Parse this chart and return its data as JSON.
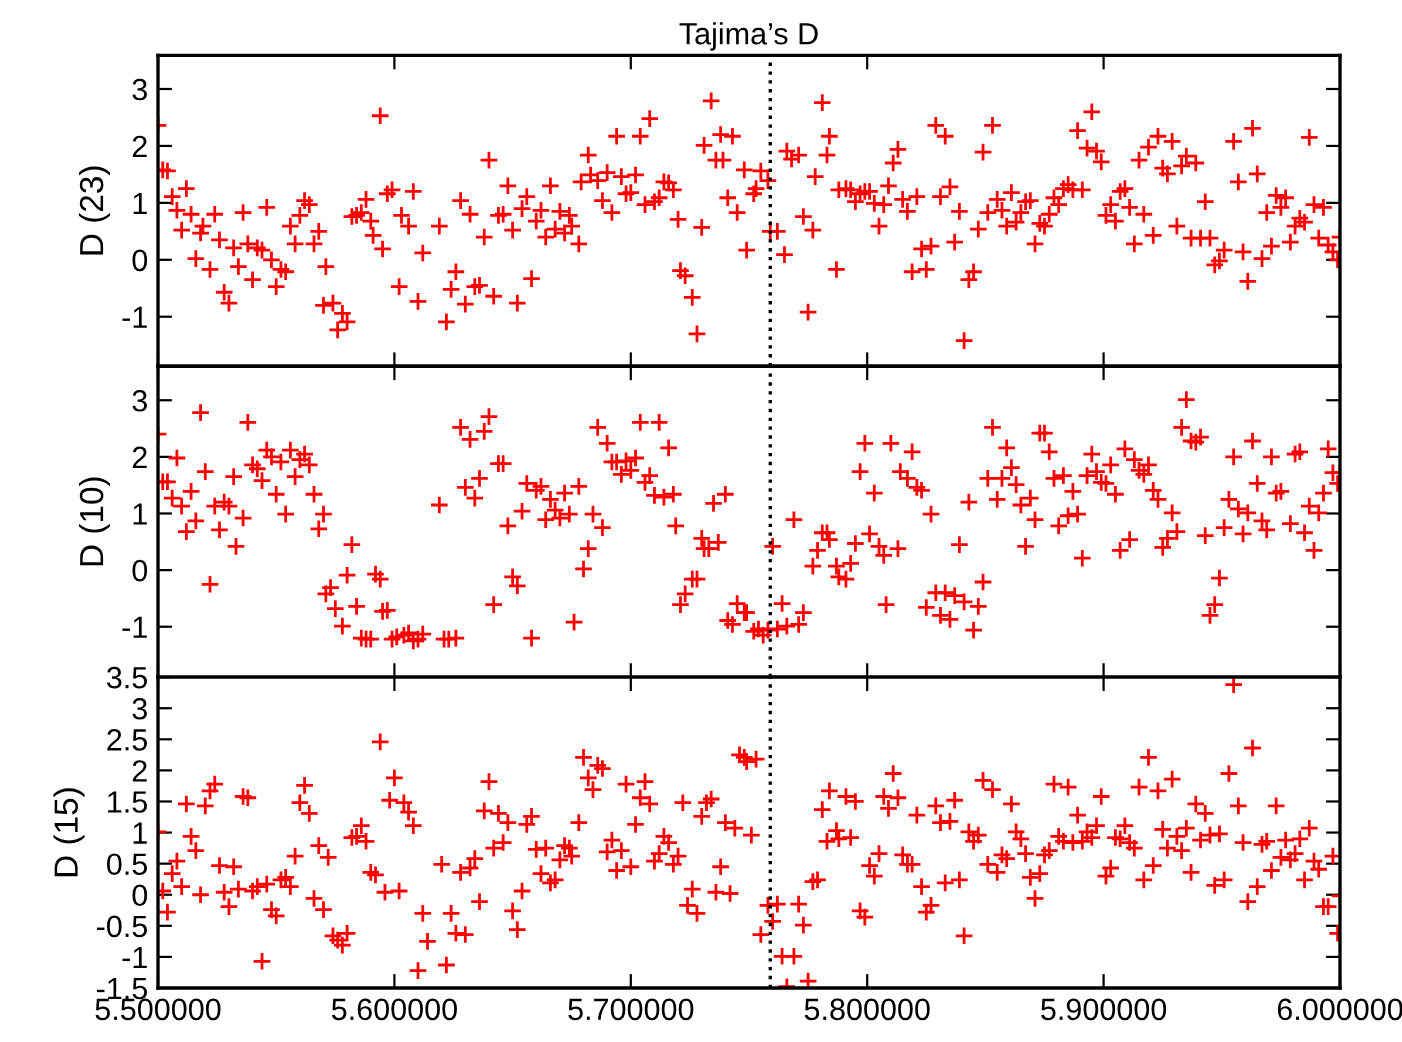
{
  "chart_data": [
    {
      "type": "scatter",
      "title": "Tajima’s D",
      "ylabel": "D (23)",
      "color": "#ff0000",
      "marker": "cross",
      "tick_labels": "y",
      "xlim": [
        5.5,
        6.0
      ],
      "xticks": [
        {
          "value": 5.5,
          "label": null
        },
        {
          "value": 5.6,
          "label": null
        },
        {
          "value": 5.7,
          "label": null
        },
        {
          "value": 5.8,
          "label": null
        },
        {
          "value": 5.9,
          "label": null
        },
        {
          "value": 6.0,
          "label": null
        }
      ],
      "ylim": [
        -1.87,
        3.59
      ],
      "yticks": [
        -1,
        0,
        1,
        2,
        3
      ],
      "ref_lines": [
        {
          "axis": "x",
          "value": 5.759,
          "color": "#000000",
          "line_style": "dotted"
        }
      ],
      "x": [
        5.5,
        5.502,
        5.504,
        5.506,
        5.508,
        5.51,
        5.512,
        5.514,
        5.516,
        5.518,
        5.519,
        5.522,
        5.524,
        5.526,
        5.528,
        5.53,
        5.532,
        5.534,
        5.536,
        5.538,
        5.54,
        5.542,
        5.544,
        5.546,
        5.548,
        5.55,
        5.552,
        5.554,
        5.556,
        5.558,
        5.56,
        5.562,
        5.564,
        5.566,
        5.568,
        5.57,
        5.571,
        5.574,
        5.576,
        5.578,
        5.58,
        5.582,
        5.584,
        5.586,
        5.588,
        5.59,
        5.591,
        5.594,
        5.595,
        5.597,
        5.599,
        5.602,
        5.603,
        5.606,
        5.608,
        5.61,
        5.612,
        5.619,
        5.622,
        5.624,
        5.626,
        5.628,
        5.63,
        5.632,
        5.634,
        5.636,
        5.638,
        5.64,
        5.642,
        5.644,
        5.646,
        5.648,
        5.65,
        5.652,
        5.654,
        5.656,
        5.658,
        5.66,
        5.662,
        5.664,
        5.666,
        5.668,
        5.67,
        5.672,
        5.674,
        5.675,
        5.678,
        5.679,
        5.682,
        5.683,
        5.686,
        5.688,
        5.69,
        5.692,
        5.694,
        5.696,
        5.698,
        5.7,
        5.702,
        5.704,
        5.706,
        5.708,
        5.71,
        5.712,
        5.714,
        5.716,
        5.718,
        5.72,
        5.721,
        5.723,
        5.726,
        5.728,
        5.73,
        5.731,
        5.734,
        5.736,
        5.738,
        5.739,
        5.741,
        5.743,
        5.745,
        5.748,
        5.749,
        5.752,
        5.753,
        5.755,
        5.758,
        5.759,
        5.762,
        5.765,
        5.766,
        5.768,
        5.771,
        5.773,
        5.775,
        5.777,
        5.778,
        5.781,
        5.783,
        5.784,
        5.787,
        5.788,
        5.791,
        5.793,
        5.795,
        5.797,
        5.799,
        5.801,
        5.803,
        5.805,
        5.807,
        5.809,
        5.811,
        5.813,
        5.815,
        5.817,
        5.819,
        5.821,
        5.823,
        5.825,
        5.827,
        5.829,
        5.831,
        5.833,
        5.835,
        5.837,
        5.839,
        5.841,
        5.843,
        5.845,
        5.847,
        5.849,
        5.851,
        5.853,
        5.855,
        5.857,
        5.859,
        5.861,
        5.863,
        5.865,
        5.867,
        5.869,
        5.871,
        5.873,
        5.875,
        5.877,
        5.879,
        5.881,
        5.883,
        5.885,
        5.887,
        5.889,
        5.891,
        5.893,
        5.895,
        5.897,
        5.899,
        5.901,
        5.903,
        5.905,
        5.907,
        5.909,
        5.911,
        5.913,
        5.915,
        5.917,
        5.919,
        5.921,
        5.923,
        5.925,
        5.927,
        5.929,
        5.931,
        5.933,
        5.935,
        5.937,
        5.939,
        5.941,
        5.943,
        5.945,
        5.947,
        5.949,
        5.951,
        5.955,
        5.957,
        5.959,
        5.961,
        5.963,
        5.965,
        5.967,
        5.969,
        5.971,
        5.973,
        5.975,
        5.977,
        5.979,
        5.981,
        5.983,
        5.985,
        5.987,
        5.989,
        5.991,
        5.993,
        5.995,
        5.997,
        5.999,
        6.0
      ],
      "values": [
        2.36,
        1.58,
        1.56,
        1.11,
        0.87,
        0.52,
        1.25,
        0.8,
        0.02,
        0.47,
        0.59,
        -0.17,
        0.8,
        0.35,
        -0.57,
        -0.76,
        0.21,
        -0.12,
        0.83,
        0.28,
        -0.35,
        0.21,
        0.17,
        0.92,
        0.0,
        -0.47,
        -0.17,
        -0.21,
        0.59,
        0.28,
        0.78,
        1.04,
        0.97,
        0.28,
        0.5,
        -0.8,
        -0.12,
        -0.76,
        -1.23,
        -0.94,
        -1.09,
        0.76,
        0.78,
        0.83,
        1.06,
        0.68,
        0.43,
        2.53,
        0.19,
        1.16,
        1.23,
        -0.47,
        0.78,
        0.59,
        1.2,
        -0.73,
        0.12,
        0.59,
        -1.09,
        -0.52,
        -0.21,
        1.04,
        -0.78,
        0.8,
        -0.47,
        -0.45,
        0.4,
        1.75,
        -0.64,
        0.78,
        0.8,
        1.3,
        0.52,
        -0.76,
        0.9,
        1.11,
        -0.33,
        0.68,
        0.87,
        0.4,
        1.3,
        0.54,
        0.85,
        0.47,
        0.78,
        0.59,
        0.28,
        1.37,
        1.84,
        1.49,
        1.39,
        1.04,
        1.53,
        0.83,
        2.17,
        1.46,
        1.16,
        1.18,
        1.49,
        2.17,
        0.97,
        2.48,
        1.02,
        1.09,
        1.37,
        1.35,
        1.23,
        0.71,
        -0.19,
        -0.28,
        -0.66,
        -1.3,
        0.57,
        2.01,
        2.79,
        1.75,
        2.2,
        1.75,
        1.09,
        2.17,
        0.83,
        1.58,
        0.17,
        1.16,
        1.25,
        1.56,
        1.39,
        0.5,
        0.5,
        0.09,
        1.91,
        1.77,
        1.84,
        0.76,
        -0.92,
        0.52,
        1.46,
        2.76,
        1.84,
        2.17,
        -0.17,
        1.23,
        1.25,
        1.23,
        1.02,
        1.16,
        1.2,
        1.2,
        0.99,
        0.59,
        0.97,
        1.3,
        1.7,
        1.94,
        1.06,
        0.85,
        -0.21,
        1.11,
        0.19,
        -0.17,
        0.24,
        2.36,
        1.11,
        2.17,
        1.28,
        0.31,
        0.85,
        -1.42,
        -0.35,
        -0.21,
        0.54,
        1.89,
        0.83,
        2.36,
        1.06,
        0.87,
        0.59,
        1.18,
        0.66,
        0.83,
        1.02,
        1.04,
        0.28,
        0.64,
        0.59,
        0.8,
        1.09,
        0.97,
        1.25,
        1.32,
        1.23,
        2.27,
        1.23,
        1.96,
        2.6,
        1.91,
        1.72,
        0.78,
        0.97,
        0.68,
        1.2,
        1.25,
        0.92,
        0.28,
        1.75,
        0.8,
        1.98,
        0.43,
        2.17,
        1.61,
        1.51,
        2.08,
        0.59,
        1.65,
        1.82,
        0.38,
        1.7,
        0.38,
        1.02,
        0.38,
        -0.09,
        -0.02,
        0.17,
        2.08,
        1.37,
        0.14,
        -0.38,
        2.31,
        1.51,
        0.02,
        0.83,
        0.24,
        1.13,
        0.92,
        1.09,
        0.31,
        0.59,
        0.73,
        0.66,
        2.15,
        0.97,
        0.38,
        0.92,
        0.26,
        0.14,
        0.0,
        0.4
      ]
    },
    {
      "type": "scatter",
      "ylabel": "D (10)",
      "color": "#ff0000",
      "marker": "cross",
      "tick_labels": "y",
      "xlim": [
        5.5,
        6.0
      ],
      "xticks": [
        {
          "value": 5.5,
          "label": null
        },
        {
          "value": 5.6,
          "label": null
        },
        {
          "value": 5.7,
          "label": null
        },
        {
          "value": 5.8,
          "label": null
        },
        {
          "value": 5.9,
          "label": null
        },
        {
          "value": 6.0,
          "label": null
        }
      ],
      "ylim": [
        -1.89,
        3.6
      ],
      "yticks": [
        -1,
        0,
        1,
        2,
        3
      ],
      "ref_lines": [
        {
          "axis": "x",
          "value": 5.759,
          "color": "#000000",
          "line_style": "dotted"
        }
      ],
      "x": [
        5.5,
        5.502,
        5.504,
        5.506,
        5.508,
        5.51,
        5.512,
        5.514,
        5.516,
        5.518,
        5.52,
        5.522,
        5.524,
        5.526,
        5.528,
        5.53,
        5.532,
        5.533,
        5.536,
        5.538,
        5.54,
        5.542,
        5.544,
        5.546,
        5.548,
        5.55,
        5.552,
        5.554,
        5.556,
        5.558,
        5.56,
        5.562,
        5.564,
        5.566,
        5.568,
        5.57,
        5.571,
        5.573,
        5.575,
        5.578,
        5.58,
        5.582,
        5.584,
        5.586,
        5.588,
        5.59,
        5.592,
        5.594,
        5.595,
        5.597,
        5.599,
        5.601,
        5.604,
        5.606,
        5.608,
        5.61,
        5.612,
        5.619,
        5.621,
        5.623,
        5.626,
        5.628,
        5.63,
        5.632,
        5.634,
        5.636,
        5.638,
        5.64,
        5.642,
        5.644,
        5.646,
        5.648,
        5.65,
        5.652,
        5.654,
        5.656,
        5.658,
        5.66,
        5.662,
        5.664,
        5.666,
        5.668,
        5.67,
        5.672,
        5.674,
        5.676,
        5.678,
        5.68,
        5.682,
        5.684,
        5.686,
        5.688,
        5.69,
        5.692,
        5.694,
        5.696,
        5.698,
        5.7,
        5.702,
        5.704,
        5.706,
        5.708,
        5.71,
        5.712,
        5.714,
        5.716,
        5.718,
        5.719,
        5.721,
        5.723,
        5.726,
        5.728,
        5.73,
        5.731,
        5.733,
        5.735,
        5.737,
        5.74,
        5.741,
        5.743,
        5.745,
        5.748,
        5.749,
        5.752,
        5.754,
        5.756,
        5.758,
        5.76,
        5.762,
        5.764,
        5.766,
        5.769,
        5.771,
        5.773,
        5.777,
        5.779,
        5.781,
        5.783,
        5.784,
        5.787,
        5.788,
        5.791,
        5.793,
        5.795,
        5.797,
        5.799,
        5.801,
        5.803,
        5.805,
        5.807,
        5.808,
        5.81,
        5.813,
        5.814,
        5.817,
        5.819,
        5.821,
        5.823,
        5.825,
        5.827,
        5.829,
        5.831,
        5.833,
        5.835,
        5.837,
        5.839,
        5.841,
        5.843,
        5.845,
        5.847,
        5.849,
        5.851,
        5.853,
        5.855,
        5.857,
        5.859,
        5.861,
        5.863,
        5.865,
        5.867,
        5.869,
        5.871,
        5.873,
        5.875,
        5.877,
        5.879,
        5.881,
        5.883,
        5.885,
        5.887,
        5.889,
        5.891,
        5.893,
        5.895,
        5.897,
        5.899,
        5.901,
        5.903,
        5.905,
        5.907,
        5.909,
        5.911,
        5.913,
        5.915,
        5.917,
        5.919,
        5.921,
        5.923,
        5.925,
        5.927,
        5.929,
        5.931,
        5.933,
        5.935,
        5.937,
        5.939,
        5.941,
        5.943,
        5.945,
        5.947,
        5.949,
        5.951,
        5.953,
        5.955,
        5.957,
        5.959,
        5.961,
        5.963,
        5.965,
        5.967,
        5.969,
        5.971,
        5.973,
        5.975,
        5.979,
        5.981,
        5.983,
        5.985,
        5.987,
        5.989,
        5.991,
        5.993,
        5.995,
        5.997,
        5.999,
        6.0
      ],
      "values": [
        2.4,
        1.56,
        1.56,
        1.27,
        1.98,
        1.13,
        0.68,
        1.39,
        0.87,
        2.78,
        1.74,
        -0.25,
        1.13,
        0.71,
        1.2,
        1.13,
        1.65,
        0.42,
        0.92,
        2.61,
        1.86,
        1.79,
        1.58,
        2.12,
        2.0,
        1.34,
        1.91,
        0.99,
        2.12,
        1.65,
        1.95,
        2.05,
        1.86,
        1.34,
        0.73,
        0.99,
        -0.42,
        -0.31,
        -0.68,
        -0.99,
        -0.09,
        0.45,
        -0.64,
        -1.2,
        -1.22,
        -1.22,
        -0.07,
        -0.16,
        -0.73,
        -0.71,
        -1.22,
        -1.18,
        -1.15,
        -1.11,
        -1.25,
        -1.22,
        -1.13,
        1.15,
        -1.22,
        -1.22,
        -1.2,
        2.52,
        1.46,
        2.31,
        1.27,
        1.62,
        2.45,
        2.71,
        -0.61,
        1.88,
        1.88,
        0.78,
        -0.12,
        -0.28,
        1.04,
        1.53,
        -1.2,
        1.41,
        1.48,
        0.89,
        1.25,
        1.06,
        0.92,
        1.36,
        0.99,
        -0.92,
        1.48,
        0.02,
        0.38,
        0.99,
        2.52,
        0.75,
        2.24,
        1.91,
        1.91,
        1.69,
        1.93,
        1.76,
        1.98,
        2.61,
        1.55,
        1.67,
        1.32,
        2.61,
        1.29,
        2.16,
        1.34,
        0.78,
        -0.61,
        -0.42,
        -0.16,
        -0.16,
        0.56,
        0.38,
        0.38,
        1.18,
        0.49,
        1.34,
        -0.89,
        -0.96,
        -0.59,
        -0.75,
        -0.75,
        -1.08,
        -1.04,
        -1.15,
        -1.06,
        0.42,
        -1.04,
        -0.59,
        -0.99,
        0.89,
        -0.96,
        -0.75,
        0.07,
        0.35,
        0.66,
        0.66,
        0.54,
        0.07,
        -0.12,
        -0.16,
        0.12,
        0.47,
        1.74,
        2.24,
        0.64,
        1.36,
        0.42,
        0.26,
        -0.61,
        2.24,
        0.38,
        1.74,
        1.62,
        2.09,
        1.46,
        1.41,
        -0.66,
        0.99,
        -0.4,
        -0.8,
        -0.4,
        -0.87,
        -0.45,
        0.45,
        -0.56,
        1.2,
        -1.06,
        -0.64,
        -0.21,
        1.62,
        2.52,
        1.25,
        1.62,
        2.16,
        1.81,
        1.51,
        1.15,
        0.42,
        1.27,
        0.89,
        2.42,
        2.42,
        2.09,
        1.62,
        0.78,
        1.67,
        0.96,
        1.39,
        0.99,
        0.21,
        1.67,
        2.05,
        1.74,
        1.55,
        1.53,
        1.86,
        1.34,
        0.35,
        2.14,
        0.54,
        1.95,
        1.76,
        1.69,
        1.86,
        1.41,
        1.25,
        0.4,
        0.56,
        1.01,
        0.68,
        2.52,
        3.01,
        2.28,
        2.26,
        2.35,
        0.61,
        -0.8,
        -0.61,
        -0.14,
        0.75,
        1.25,
        2.0,
        1.08,
        0.64,
        1.01,
        2.28,
        1.53,
        0.87,
        0.71,
        2.0,
        1.36,
        1.39,
        0.82,
        2.05,
        2.09,
        0.66,
        1.13,
        0.35,
        1.01,
        1.36,
        2.14,
        1.72,
        1.53,
        1.72
      ]
    },
    {
      "type": "scatter",
      "ylabel": "D (15)",
      "color": "#ff0000",
      "marker": "cross",
      "xlim": [
        5.5,
        6.0
      ],
      "xticks": [
        {
          "value": 5.5,
          "label": "5.500000"
        },
        {
          "value": 5.6,
          "label": "5.600000"
        },
        {
          "value": 5.7,
          "label": "5.700000"
        },
        {
          "value": 5.8,
          "label": "5.800000"
        },
        {
          "value": 5.9,
          "label": "5.900000"
        },
        {
          "value": 6.0,
          "label": "6.000000"
        }
      ],
      "ylim": [
        -1.5,
        3.5
      ],
      "yticks": [
        -1.5,
        -1,
        -0.5,
        0,
        0.5,
        1,
        1.5,
        2,
        2.5,
        3,
        3.5
      ],
      "ref_lines": [
        {
          "axis": "x",
          "value": 5.759,
          "color": "#000000",
          "line_style": "dotted"
        }
      ],
      "x": [
        5.5,
        5.502,
        5.504,
        5.506,
        5.508,
        5.51,
        5.512,
        5.514,
        5.516,
        5.518,
        5.52,
        5.522,
        5.524,
        5.526,
        5.528,
        5.53,
        5.532,
        5.534,
        5.536,
        5.538,
        5.54,
        5.542,
        5.544,
        5.546,
        5.548,
        5.55,
        5.552,
        5.554,
        5.556,
        5.558,
        5.56,
        5.562,
        5.564,
        5.566,
        5.568,
        5.57,
        5.572,
        5.574,
        5.576,
        5.578,
        5.58,
        5.582,
        5.584,
        5.586,
        5.588,
        5.59,
        5.592,
        5.594,
        5.596,
        5.598,
        5.6,
        5.602,
        5.604,
        5.606,
        5.608,
        5.61,
        5.612,
        5.614,
        5.62,
        5.622,
        5.624,
        5.626,
        5.628,
        5.63,
        5.632,
        5.634,
        5.636,
        5.638,
        5.64,
        5.642,
        5.644,
        5.646,
        5.648,
        5.65,
        5.652,
        5.654,
        5.656,
        5.658,
        5.66,
        5.662,
        5.664,
        5.666,
        5.668,
        5.67,
        5.672,
        5.674,
        5.675,
        5.678,
        5.68,
        5.682,
        5.684,
        5.686,
        5.688,
        5.69,
        5.692,
        5.694,
        5.696,
        5.698,
        5.7,
        5.702,
        5.704,
        5.706,
        5.708,
        5.71,
        5.712,
        5.714,
        5.716,
        5.718,
        5.72,
        5.722,
        5.724,
        5.726,
        5.728,
        5.73,
        5.732,
        5.734,
        5.736,
        5.738,
        5.74,
        5.742,
        5.744,
        5.746,
        5.748,
        5.749,
        5.751,
        5.753,
        5.755,
        5.758,
        5.76,
        5.762,
        5.764,
        5.766,
        5.769,
        5.771,
        5.773,
        5.775,
        5.777,
        5.779,
        5.781,
        5.783,
        5.784,
        5.787,
        5.788,
        5.791,
        5.793,
        5.795,
        5.797,
        5.799,
        5.801,
        5.803,
        5.805,
        5.807,
        5.809,
        5.811,
        5.813,
        5.815,
        5.817,
        5.819,
        5.821,
        5.823,
        5.825,
        5.827,
        5.829,
        5.831,
        5.833,
        5.835,
        5.837,
        5.839,
        5.841,
        5.843,
        5.845,
        5.847,
        5.849,
        5.851,
        5.853,
        5.855,
        5.857,
        5.859,
        5.861,
        5.863,
        5.865,
        5.867,
        5.869,
        5.871,
        5.873,
        5.875,
        5.877,
        5.879,
        5.881,
        5.883,
        5.885,
        5.887,
        5.889,
        5.891,
        5.893,
        5.895,
        5.897,
        5.899,
        5.901,
        5.903,
        5.905,
        5.907,
        5.909,
        5.911,
        5.913,
        5.915,
        5.917,
        5.919,
        5.921,
        5.923,
        5.925,
        5.927,
        5.929,
        5.931,
        5.933,
        5.935,
        5.937,
        5.939,
        5.941,
        5.943,
        5.945,
        5.947,
        5.949,
        5.951,
        5.953,
        5.955,
        5.957,
        5.959,
        5.961,
        5.963,
        5.965,
        5.967,
        5.969,
        5.971,
        5.973,
        5.975,
        5.977,
        5.979,
        5.981,
        5.983,
        5.985,
        5.987,
        5.989,
        5.991,
        5.993,
        5.995,
        5.997,
        5.999,
        6.0
      ],
      "values": [
        1.01,
        0.06,
        -0.28,
        0.34,
        0.54,
        0.13,
        1.46,
        0.94,
        0.71,
        0.0,
        1.43,
        1.67,
        1.78,
        0.47,
        0.04,
        -0.19,
        0.45,
        0.09,
        1.58,
        1.56,
        0.06,
        0.13,
        -1.07,
        0.17,
        -0.24,
        -0.34,
        0.24,
        0.28,
        0.13,
        0.62,
        1.48,
        1.76,
        1.31,
        -0.06,
        0.79,
        -0.24,
        0.6,
        -0.66,
        -0.73,
        -0.81,
        -0.62,
        0.92,
        0.94,
        1.11,
        0.86,
        0.36,
        0.32,
        2.46,
        0.04,
        1.52,
        1.88,
        0.06,
        1.48,
        1.33,
        1.11,
        -1.22,
        -0.3,
        -0.75,
        0.49,
        -1.13,
        -0.3,
        -0.62,
        0.36,
        -0.64,
        0.43,
        0.58,
        -0.11,
        1.35,
        1.82,
        0.75,
        1.31,
        0.84,
        1.16,
        -0.26,
        -0.56,
        0.06,
        1.13,
        1.26,
        0.73,
        0.34,
        0.75,
        0.19,
        0.24,
        0.56,
        0.79,
        0.75,
        0.62,
        1.16,
        2.21,
        1.88,
        1.69,
        2.08,
        2.03,
        0.69,
        0.88,
        0.39,
        0.71,
        1.78,
        0.45,
        1.13,
        1.56,
        1.82,
        1.46,
        0.54,
        0.66,
        0.94,
        0.84,
        0.49,
        0.62,
        1.48,
        -0.17,
        0.09,
        -0.3,
        1.26,
        1.48,
        1.54,
        0.04,
        0.45,
        1.16,
        0.02,
        1.07,
        2.25,
        2.21,
        2.14,
        0.96,
        2.18,
        -0.64,
        -0.17,
        -0.43,
        -0.15,
        -0.99,
        -1.48,
        -0.99,
        -0.15,
        -0.49,
        -1.39,
        0.21,
        0.24,
        1.37,
        0.86,
        1.67,
        1.03,
        0.9,
        1.58,
        0.92,
        1.5,
        -0.26,
        -0.36,
        0.47,
        0.3,
        0.66,
        1.58,
        1.39,
        1.95,
        1.56,
        0.64,
        0.49,
        0.49,
        1.28,
        0.13,
        -0.28,
        -0.17,
        1.43,
        1.16,
        0.19,
        1.18,
        1.52,
        0.24,
        -0.66,
        1.01,
        0.86,
        0.96,
        1.84,
        0.49,
        1.69,
        0.36,
        0.64,
        0.58,
        1.46,
        1.01,
        0.9,
        0.66,
        0.28,
        -0.06,
        0.34,
        0.64,
        0.71,
        1.78,
        0.94,
        0.86,
        1.73,
        0.84,
        1.28,
        0.86,
        1.01,
        0.92,
        1.11,
        1.58,
        0.3,
        0.43,
        0.92,
        0.9,
        1.11,
        0.84,
        0.75,
        1.73,
        0.24,
        2.21,
        0.47,
        1.67,
        1.05,
        0.75,
        1.86,
        0.94,
        0.71,
        1.07,
        0.36,
        1.46,
        0.88,
        1.31,
        0.96,
        0.15,
        0.98,
        0.24,
        1.95,
        3.38,
        1.43,
        0.84,
        -0.11,
        2.36,
        0.13,
        0.81,
        0.86,
        0.39,
        1.43,
        0.6,
        0.88,
        0.56,
        0.66,
        0.9,
        0.24,
        1.07,
        0.54,
        0.41,
        -0.19,
        -0.19,
        0.62,
        -0.62,
        -0.02
      ]
    }
  ]
}
